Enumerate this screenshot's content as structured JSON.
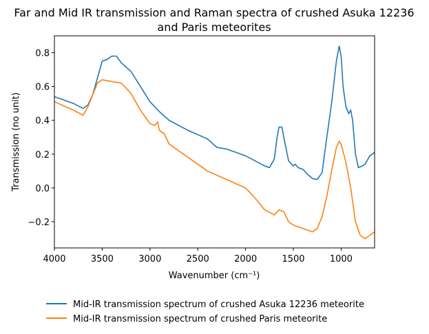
{
  "chart_data": {
    "type": "line",
    "title": [
      "Far and Mid IR transmission and Raman spectra of crushed Asuka 12236",
      "and Paris meteorites"
    ],
    "xlabel": "Wavenumber (cm⁻¹)",
    "ylabel": "Transmission (no unit)",
    "xlim": [
      4000,
      650
    ],
    "xticks": [
      4000,
      3500,
      3000,
      2500,
      2000,
      1500,
      1000
    ],
    "ylim": [
      -0.355,
      0.9
    ],
    "yticks": [
      {
        "value": -0.2,
        "label": "−0.2"
      },
      {
        "value": 0,
        "label": "0.0"
      },
      0.2,
      0.4,
      0.6,
      0.8
    ],
    "legend": "below",
    "series": [
      {
        "name": "Mid-IR transmission spectrum of crushed Asuka 12236 meteorite",
        "color": "#1f77b4",
        "x": [
          4000,
          3800,
          3700,
          3650,
          3600,
          3550,
          3500,
          3450,
          3400,
          3350,
          3300,
          3200,
          3100,
          3000,
          2900,
          2800,
          2600,
          2400,
          2300,
          2200,
          2000,
          1800,
          1750,
          1700,
          1670,
          1650,
          1620,
          1600,
          1550,
          1500,
          1480,
          1450,
          1400,
          1350,
          1300,
          1250,
          1200,
          1150,
          1100,
          1050,
          1020,
          1000,
          980,
          950,
          920,
          900,
          880,
          850,
          820,
          780,
          750,
          700,
          650
        ],
        "values": [
          0.54,
          0.5,
          0.47,
          0.49,
          0.55,
          0.65,
          0.75,
          0.76,
          0.78,
          0.78,
          0.74,
          0.69,
          0.6,
          0.51,
          0.45,
          0.4,
          0.34,
          0.29,
          0.24,
          0.23,
          0.19,
          0.13,
          0.12,
          0.17,
          0.3,
          0.36,
          0.36,
          0.3,
          0.16,
          0.13,
          0.14,
          0.12,
          0.11,
          0.08,
          0.055,
          0.05,
          0.09,
          0.3,
          0.5,
          0.75,
          0.84,
          0.78,
          0.6,
          0.48,
          0.44,
          0.46,
          0.4,
          0.2,
          0.12,
          0.13,
          0.14,
          0.19,
          0.21
        ]
      },
      {
        "name": "Mid-IR transmission spectrum of crushed Paris meteorite",
        "color": "#ff7f0e",
        "x": [
          4000,
          3800,
          3700,
          3650,
          3600,
          3550,
          3500,
          3400,
          3300,
          3200,
          3100,
          3000,
          2950,
          2920,
          2900,
          2850,
          2800,
          2600,
          2400,
          2200,
          2000,
          1900,
          1800,
          1700,
          1650,
          1600,
          1550,
          1500,
          1400,
          1300,
          1250,
          1200,
          1150,
          1100,
          1050,
          1020,
          1000,
          950,
          900,
          850,
          800,
          750,
          700,
          650
        ],
        "values": [
          0.51,
          0.46,
          0.43,
          0.48,
          0.55,
          0.62,
          0.64,
          0.63,
          0.62,
          0.56,
          0.46,
          0.38,
          0.37,
          0.39,
          0.34,
          0.32,
          0.26,
          0.18,
          0.1,
          0.05,
          0,
          -0.06,
          -0.13,
          -0.16,
          -0.13,
          -0.14,
          -0.2,
          -0.22,
          -0.24,
          -0.26,
          -0.24,
          -0.17,
          -0.05,
          0.1,
          0.24,
          0.275,
          0.26,
          0.15,
          0,
          -0.2,
          -0.28,
          -0.3,
          -0.28,
          -0.26
        ]
      }
    ]
  }
}
